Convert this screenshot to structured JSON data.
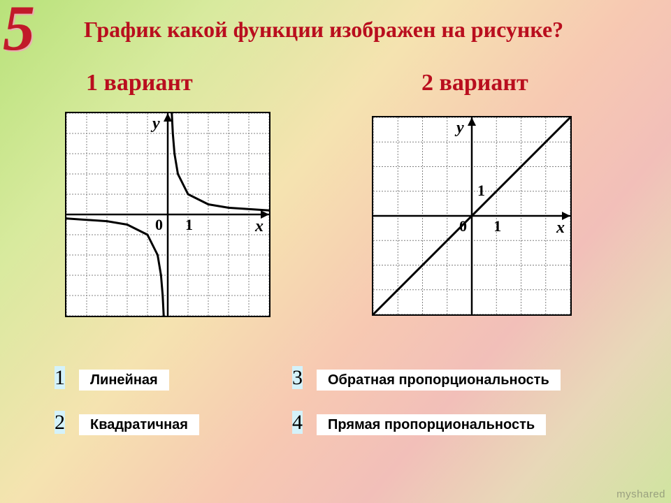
{
  "slide_number": "5",
  "question": "График какой функции изображен на рисунке?",
  "variants": {
    "v1_label": "1 вариант",
    "v2_label": "2 вариант"
  },
  "graph_common": {
    "background": "#ffffff",
    "grid_color": "#808080",
    "grid_dash": "2,2",
    "axis_color": "#000000",
    "axis_width": 2.5,
    "curve_color": "#000000",
    "curve_width": 3,
    "axis_label_fontsize": 24,
    "axis_label_fontstyle": "italic",
    "tick_fontsize": 22
  },
  "graph1": {
    "type": "hyperbola",
    "xlim": [
      -5,
      5
    ],
    "ylim": [
      -5,
      5
    ],
    "grid_step": 1,
    "x_label": "x",
    "y_label": "y",
    "origin_label": "0",
    "x_tick_label": "1",
    "k": 1,
    "branch1_x": [
      0.2,
      0.25,
      0.333,
      0.5,
      1,
      2,
      3,
      5
    ],
    "branch1_y": [
      5,
      4,
      3,
      2,
      1,
      0.5,
      0.333,
      0.2
    ],
    "branch2_x": [
      -5,
      -3,
      -2,
      -1,
      -0.5,
      -0.333,
      -0.25,
      -0.2
    ],
    "branch2_y": [
      -0.2,
      -0.333,
      -0.5,
      -1,
      -2,
      -3,
      -4,
      -5
    ]
  },
  "graph2": {
    "type": "line",
    "xlim": [
      -4,
      4
    ],
    "ylim": [
      -4,
      4
    ],
    "grid_step": 1,
    "x_label": "x",
    "y_label": "y",
    "origin_label": "0",
    "x_tick_label": "1",
    "y_tick_label": "1",
    "slope": 1,
    "intercept": 0,
    "x_points": [
      -4,
      4
    ],
    "y_points": [
      -4,
      4
    ]
  },
  "answers": [
    {
      "num": "1",
      "label": "Линейная"
    },
    {
      "num": "2",
      "label": "Квадратичная"
    },
    {
      "num": "3",
      "label": "Обратная пропорциональность"
    },
    {
      "num": "4",
      "label": "Прямая пропорциональность"
    }
  ],
  "answer_box_bg": "#d4f2fa",
  "answer_label_bg": "#ffffff",
  "watermark": "myshared"
}
